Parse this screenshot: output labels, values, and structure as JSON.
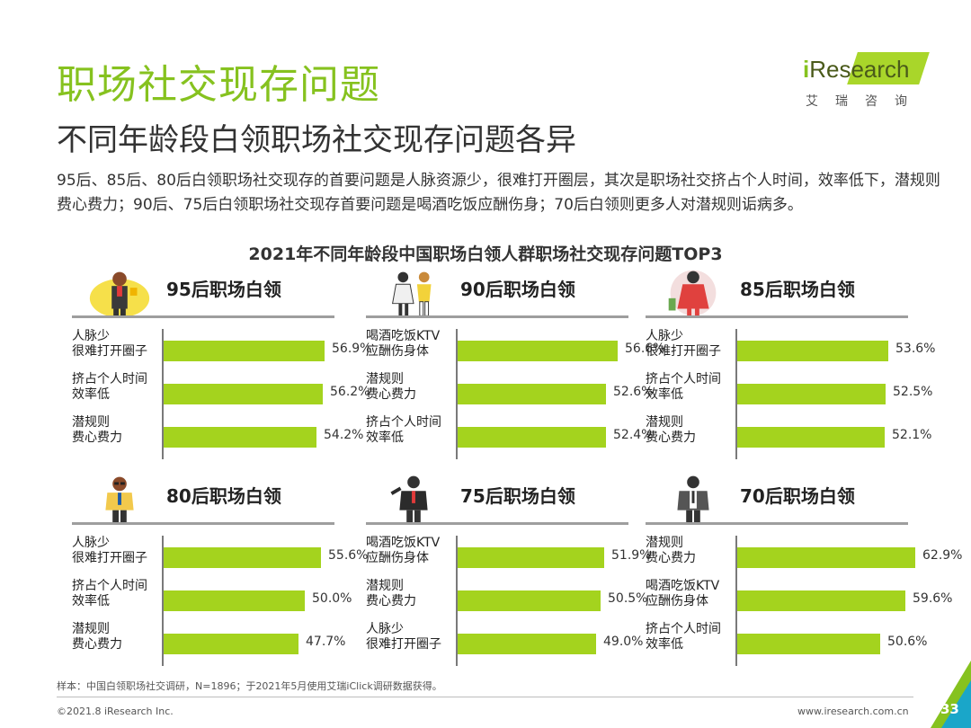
{
  "header": {
    "title": "职场社交现存问题",
    "subtitle": "不同年龄段白领职场社交现存问题各异",
    "description": "95后、85后、80后白领职场社交现存的首要问题是人脉资源少，很难打开圈层，其次是职场社交挤占个人时间，效率低下，潜规则费心费力；90后、75后白领职场社交现存首要问题是喝酒吃饭应酬伤身；70后白领则更多人对潜规则诟病多。"
  },
  "logo": {
    "prefix": "i",
    "word": "Research",
    "cn": "艾瑞咨询"
  },
  "colors": {
    "accent": "#86c21f",
    "bar": "#a4d31e",
    "axis": "#7a7a7a"
  },
  "chart_data": {
    "type": "bar",
    "title": "2021年不同年龄段中国职场白领人群职场社交现存问题TOP3",
    "panels": [
      {
        "title": "95后职场白领",
        "icon": "man-with-trophy-icon",
        "categories": [
          "人脉少\n很难打开圈子",
          "挤占个人时间\n效率低",
          "潜规则\n费心费力"
        ],
        "values": [
          56.9,
          56.2,
          54.2
        ],
        "labels": [
          "56.9%",
          "56.2%",
          "54.2%"
        ]
      },
      {
        "title": "90后职场白领",
        "icon": "two-women-icon",
        "categories": [
          "喝酒吃饭KTV\n应酬伤身体",
          "潜规则\n费心费力",
          "挤占个人时间\n效率低"
        ],
        "values": [
          56.6,
          52.6,
          52.4
        ],
        "labels": [
          "56.6%",
          "52.6%",
          "52.4%"
        ]
      },
      {
        "title": "85后职场白领",
        "icon": "woman-in-red-icon",
        "categories": [
          "人脉少\n很难打开圈子",
          "挤占个人时间\n效率低",
          "潜规则\n费心费力"
        ],
        "values": [
          53.6,
          52.5,
          52.1
        ],
        "labels": [
          "53.6%",
          "52.5%",
          "52.1%"
        ]
      },
      {
        "title": "80后职场白领",
        "icon": "man-with-glasses-icon",
        "categories": [
          "人脉少\n很难打开圈子",
          "挤占个人时间\n效率低",
          "潜规则\n费心费力"
        ],
        "values": [
          55.6,
          50.0,
          47.7
        ],
        "labels": [
          "55.6%",
          "50.0%",
          "47.7%"
        ]
      },
      {
        "title": "75后职场白领",
        "icon": "man-in-suit-icon",
        "categories": [
          "喝酒吃饭KTV\n应酬伤身体",
          "潜规则\n费心费力",
          "人脉少\n很难打开圈子"
        ],
        "values": [
          51.9,
          50.5,
          49.0
        ],
        "labels": [
          "51.9%",
          "50.5%",
          "49.0%"
        ]
      },
      {
        "title": "70后职场白领",
        "icon": "businessman-icon",
        "categories": [
          "潜规则\n费心费力",
          "喝酒吃饭KTV\n应酬伤身体",
          "挤占个人时间\n效率低"
        ],
        "values": [
          62.9,
          59.6,
          50.6
        ],
        "labels": [
          "62.9%",
          "59.6%",
          "50.6%"
        ]
      }
    ]
  },
  "footer": {
    "note": "样本：中国白领职场社交调研，N=1896；于2021年5月使用艾瑞iClick调研数据获得。",
    "copyright": "©2021.8 iResearch Inc.",
    "url": "www.iresearch.com.cn",
    "page": "33"
  }
}
